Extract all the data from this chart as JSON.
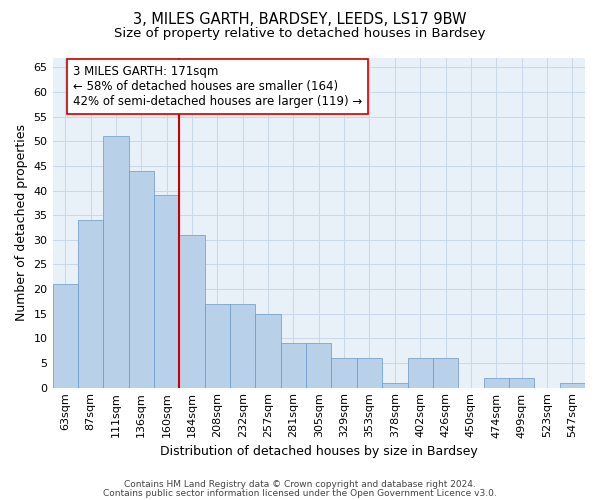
{
  "title_line1": "3, MILES GARTH, BARDSEY, LEEDS, LS17 9BW",
  "title_line2": "Size of property relative to detached houses in Bardsey",
  "xlabel": "Distribution of detached houses by size in Bardsey",
  "ylabel": "Number of detached properties",
  "categories": [
    "63sqm",
    "87sqm",
    "111sqm",
    "136sqm",
    "160sqm",
    "184sqm",
    "208sqm",
    "232sqm",
    "257sqm",
    "281sqm",
    "305sqm",
    "329sqm",
    "353sqm",
    "378sqm",
    "402sqm",
    "426sqm",
    "450sqm",
    "474sqm",
    "499sqm",
    "523sqm",
    "547sqm"
  ],
  "values": [
    21,
    34,
    51,
    44,
    39,
    31,
    17,
    17,
    15,
    9,
    9,
    6,
    6,
    1,
    6,
    6,
    0,
    2,
    2,
    0,
    1
  ],
  "bar_color": "#b8d0e8",
  "bar_edge_color": "#6699cc",
  "vline_color": "#cc0000",
  "annotation_text_line1": "3 MILES GARTH: 171sqm",
  "annotation_text_line2": "← 58% of detached houses are smaller (164)",
  "annotation_text_line3": "42% of semi-detached houses are larger (119) →",
  "annotation_box_color": "#ffffff",
  "annotation_box_edge": "#cc0000",
  "ylim": [
    0,
    67
  ],
  "yticks": [
    0,
    5,
    10,
    15,
    20,
    25,
    30,
    35,
    40,
    45,
    50,
    55,
    60,
    65
  ],
  "grid_color": "#c8d8e8",
  "background_color": "#e8f0f8",
  "footer_line1": "Contains HM Land Registry data © Crown copyright and database right 2024.",
  "footer_line2": "Contains public sector information licensed under the Open Government Licence v3.0.",
  "title_fontsize": 10.5,
  "subtitle_fontsize": 9.5,
  "axis_label_fontsize": 9,
  "tick_fontsize": 8,
  "annotation_fontsize": 8.5,
  "footer_fontsize": 6.5
}
